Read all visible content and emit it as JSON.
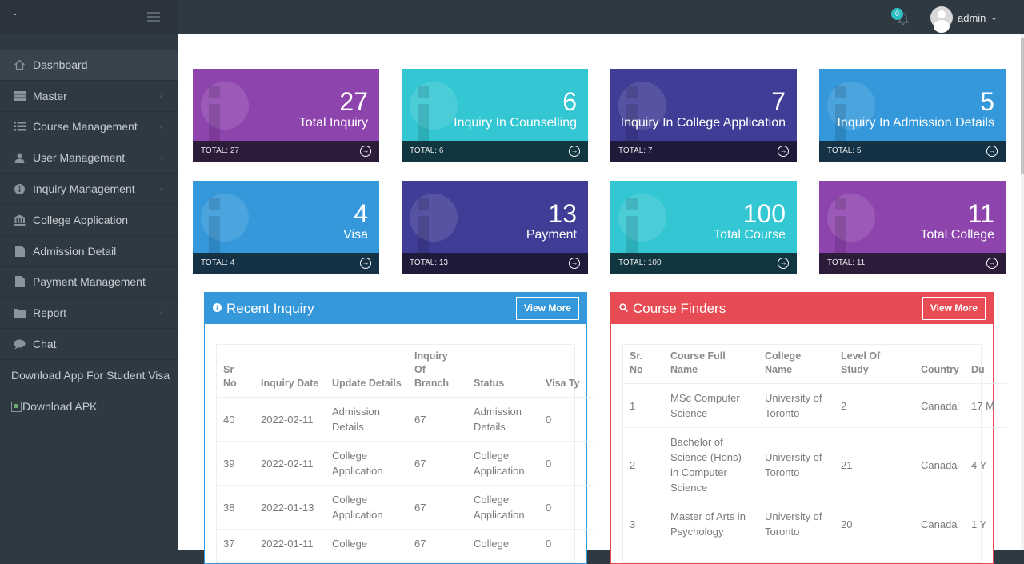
{
  "header": {
    "notifications_count": "0",
    "user_name": "admin"
  },
  "sidebar": {
    "items": [
      {
        "label": "Dashboard",
        "icon": "home-icon"
      },
      {
        "label": "Master",
        "icon": "server-icon"
      },
      {
        "label": "Course Management",
        "icon": "list-icon"
      },
      {
        "label": "User Management",
        "icon": "user-icon"
      },
      {
        "label": "Inquiry Management",
        "icon": "info-icon"
      },
      {
        "label": "College Application",
        "icon": "bank-icon"
      },
      {
        "label": "Admission Detail",
        "icon": "file-icon"
      },
      {
        "label": "Payment Management",
        "icon": "file-icon"
      },
      {
        "label": "Report",
        "icon": "folder-icon"
      },
      {
        "label": "Chat",
        "icon": "comment-icon"
      }
    ],
    "download_app": "Download App For Student Visa",
    "download_apk_alt": "Download APK"
  },
  "tiles": [
    {
      "value": "27",
      "label": "Total Inquiry",
      "total": "TOTAL: 27",
      "color": "#8e44ad"
    },
    {
      "value": "6",
      "label": "Inquiry In Counselling",
      "total": "TOTAL: 6",
      "color": "#33c6d3"
    },
    {
      "value": "7",
      "label": "Inquiry In College Application",
      "total": "TOTAL: 7",
      "color": "#3f3d96"
    },
    {
      "value": "5",
      "label": "Inquiry In Admission Details",
      "total": "TOTAL: 5",
      "color": "#3498db"
    },
    {
      "value": "4",
      "label": "Visa",
      "total": "TOTAL: 4",
      "color": "#3498db"
    },
    {
      "value": "13",
      "label": "Payment",
      "total": "TOTAL: 13",
      "color": "#3f3d96"
    },
    {
      "value": "100",
      "label": "Total Course",
      "total": "TOTAL: 100",
      "color": "#33c6d3"
    },
    {
      "value": "11",
      "label": "Total College",
      "total": "TOTAL: 11",
      "color": "#8e44ad"
    }
  ],
  "recent_inquiry": {
    "title": "Recent Inquiry",
    "view_more": "View More",
    "columns": [
      "Sr No",
      "Inquiry Date",
      "Update Details",
      "Inquiry Of Branch",
      "Status",
      "Visa Ty"
    ],
    "rows": [
      [
        "40",
        "2022-02-11",
        "Admission Details",
        "67",
        "Admission Details",
        "0"
      ],
      [
        "39",
        "2022-02-11",
        "College Application",
        "67",
        "College Application",
        "0"
      ],
      [
        "38",
        "2022-01-13",
        "College Application",
        "67",
        "College Application",
        "0"
      ],
      [
        "37",
        "2022-01-11",
        "College",
        "67",
        "College",
        "0"
      ]
    ]
  },
  "course_finders": {
    "title": "Course Finders",
    "view_more": "View More",
    "columns": [
      "Sr. No",
      "Course Full Name",
      "College Name",
      "Level Of Study",
      "Country",
      "Du"
    ],
    "rows": [
      [
        "1",
        "MSc Computer Science",
        "University of Toronto",
        "2",
        "Canada",
        "17 M"
      ],
      [
        "2",
        "Bachelor of Science (Hons) in Computer Science",
        "University of Toronto",
        "21",
        "Canada",
        "4 Y"
      ],
      [
        "3",
        "Master of Arts in Psychology",
        "University of Toronto",
        "20",
        "Canada",
        "1 Y"
      ]
    ]
  }
}
